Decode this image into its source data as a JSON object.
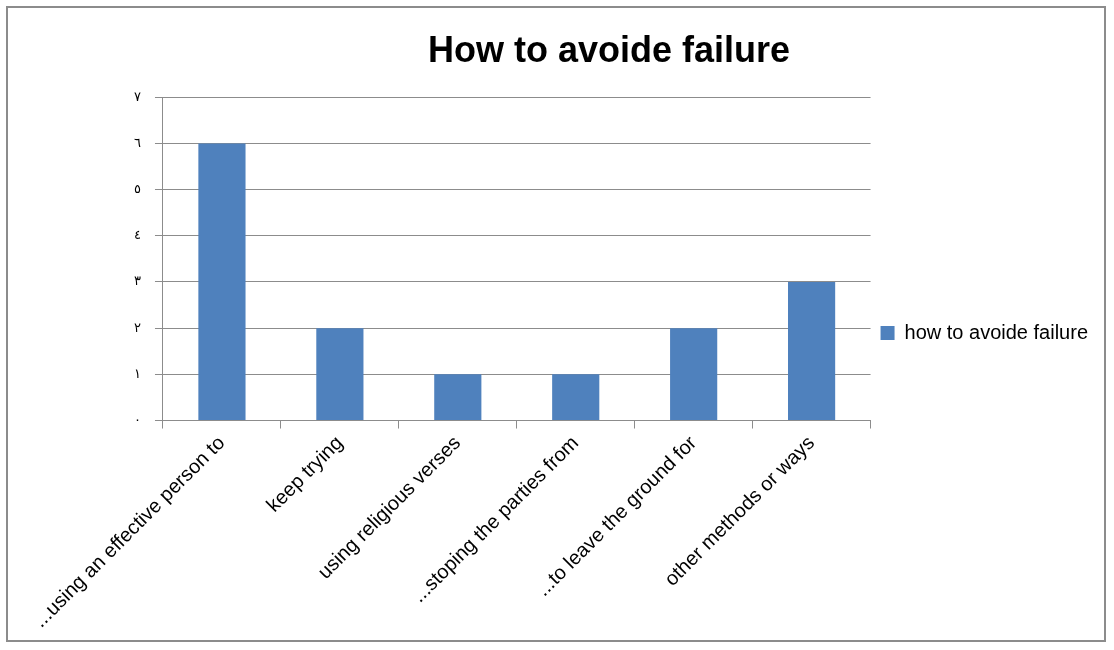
{
  "chart_data": {
    "type": "bar",
    "title": "How to avoide failure",
    "categories": [
      "...using an effective person to",
      "keep trying",
      "using religious verses",
      "...stoping the parties from",
      "...to leave the ground for",
      "other methods or ways"
    ],
    "series": [
      {
        "name": "how to avoide failure",
        "color": "#4f81bd",
        "values": [
          6,
          2,
          1,
          1,
          2,
          3
        ]
      }
    ],
    "ylim": [
      0,
      7
    ],
    "yticks": [
      {
        "value": 0,
        "label": "٠"
      },
      {
        "value": 1,
        "label": "١"
      },
      {
        "value": 2,
        "label": "٢"
      },
      {
        "value": 3,
        "label": "٣"
      },
      {
        "value": 4,
        "label": "٤"
      },
      {
        "value": 5,
        "label": "٥"
      },
      {
        "value": 6,
        "label": "٦"
      },
      {
        "value": 7,
        "label": "٧"
      }
    ],
    "grid": "y",
    "legend": "right"
  }
}
